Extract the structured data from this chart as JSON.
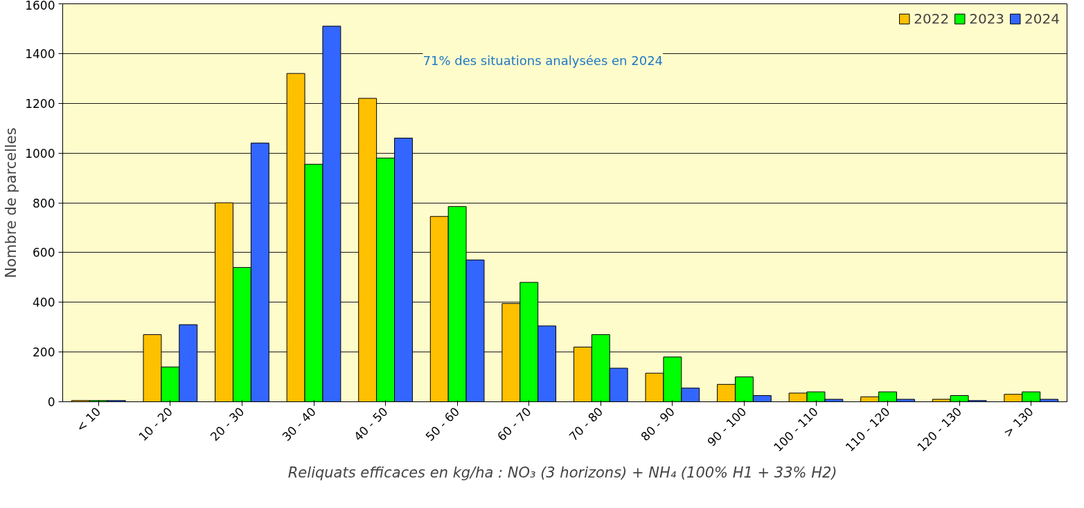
{
  "chart_data": {
    "type": "bar",
    "xlabel": "Reliquats efficaces  en kg/ha : NO₃ (3 horizons) + NH₄ (100% H1 + 33% H2)",
    "ylabel": "Nombre de parcelles",
    "categories": [
      "< 10",
      "10 - 20",
      "20 - 30",
      "30 - 40",
      "40 - 50",
      "50 - 60",
      "60 - 70",
      "70 - 80",
      "80 - 90",
      "90 - 100",
      "100 - 110",
      "110 - 120",
      "120 - 130",
      "> 130"
    ],
    "series": [
      {
        "name": "2022",
        "color": "#ffc000",
        "values": [
          5,
          270,
          800,
          1320,
          1220,
          745,
          395,
          220,
          115,
          70,
          35,
          20,
          10,
          30
        ]
      },
      {
        "name": "2023",
        "color": "#00ff00",
        "values": [
          5,
          140,
          540,
          955,
          980,
          785,
          480,
          270,
          180,
          100,
          40,
          40,
          25,
          40
        ]
      },
      {
        "name": "2024",
        "color": "#3366ff",
        "values": [
          5,
          310,
          1040,
          1510,
          1060,
          570,
          305,
          135,
          55,
          25,
          10,
          10,
          5,
          10
        ]
      }
    ],
    "ylim": [
      0,
      1600
    ],
    "yticks": [
      0,
      200,
      400,
      600,
      800,
      1000,
      1200,
      1400,
      1600
    ],
    "grid": "y",
    "legend": "top right",
    "annotations": [
      "71% des situations analysées en 2024"
    ]
  }
}
